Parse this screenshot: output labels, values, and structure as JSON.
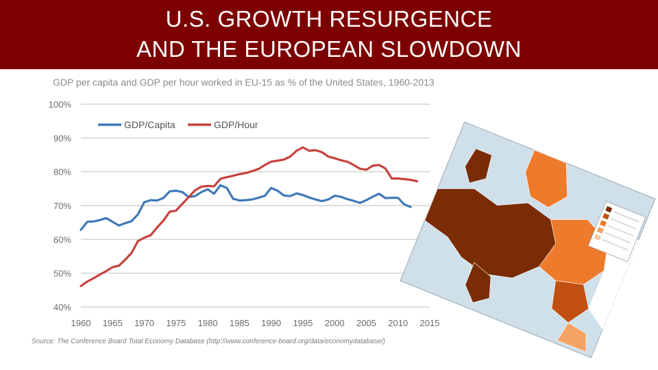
{
  "slide": {
    "title_line1": "U.S. GROWTH RESURGENCE",
    "title_line2": "AND THE EUROPEAN SLOWDOWN",
    "source": "Source: The Conference Board Total Economy Database (http://www.conference-board.org/data/economydatabase/)"
  },
  "colors": {
    "title_bar": "#7d0000",
    "gdp_capita": "#3f78b8",
    "gdp_hour": "#c8413c",
    "grid": "#c8c8c8",
    "axis_text": "#6a6a6a"
  },
  "map": {
    "legend_title": "Map legend (unreadable in source)",
    "colors": [
      "#7a2c05",
      "#c24f12",
      "#ee7a2c",
      "#f4a364",
      "#f8caa0",
      "#ffffff"
    ]
  },
  "chart_data": {
    "type": "line",
    "title": "GDP per capita and GDP per hour worked in EU-15 as % of the United States, 1960-2013",
    "xlabel": "",
    "ylabel": "",
    "xlim": [
      1960,
      2015
    ],
    "ylim": [
      40,
      100
    ],
    "x_ticks": [
      1960,
      1965,
      1970,
      1975,
      1980,
      1985,
      1990,
      1995,
      2000,
      2005,
      2010,
      2015
    ],
    "y_ticks": [
      40,
      50,
      60,
      70,
      80,
      90,
      100
    ],
    "y_tick_labels": [
      "40%",
      "50%",
      "60%",
      "70%",
      "80%",
      "90%",
      "100%"
    ],
    "legend_position": "top-left",
    "series": [
      {
        "name": "GDP/Capita",
        "color": "#3f78b8",
        "x": [
          1960,
          1961,
          1962,
          1963,
          1964,
          1965,
          1966,
          1967,
          1968,
          1969,
          1970,
          1971,
          1972,
          1973,
          1974,
          1975,
          1976,
          1977,
          1978,
          1979,
          1980,
          1981,
          1982,
          1983,
          1984,
          1985,
          1986,
          1987,
          1988,
          1989,
          1990,
          1991,
          1992,
          1993,
          1994,
          1995,
          1996,
          1997,
          1998,
          1999,
          2000,
          2001,
          2002,
          2003,
          2004,
          2005,
          2006,
          2007,
          2008,
          2009,
          2010,
          2011,
          2012,
          2013
        ],
        "values": [
          62.8,
          65.2,
          65.3,
          65.7,
          66.3,
          65.2,
          64.1,
          64.8,
          65.4,
          67.4,
          71.0,
          71.6,
          71.5,
          72.2,
          74.2,
          74.4,
          74.0,
          72.5,
          72.8,
          74.0,
          74.8,
          73.5,
          76.0,
          75.2,
          72.0,
          71.5,
          71.6,
          71.8,
          72.3,
          72.9,
          75.2,
          74.4,
          73.0,
          72.8,
          73.6,
          73.1,
          72.4,
          71.8,
          71.3,
          71.8,
          72.9,
          72.6,
          71.9,
          71.4,
          70.8,
          71.6,
          72.6,
          73.5,
          72.2,
          72.3,
          72.3,
          70.3,
          69.6,
          null
        ]
      },
      {
        "name": "GDP/Hour",
        "color": "#c8413c",
        "x": [
          1960,
          1961,
          1962,
          1963,
          1964,
          1965,
          1966,
          1967,
          1968,
          1969,
          1970,
          1971,
          1972,
          1973,
          1974,
          1975,
          1976,
          1977,
          1978,
          1979,
          1980,
          1981,
          1982,
          1983,
          1984,
          1985,
          1986,
          1987,
          1988,
          1989,
          1990,
          1991,
          1992,
          1993,
          1994,
          1995,
          1996,
          1997,
          1998,
          1999,
          2000,
          2001,
          2002,
          2003,
          2004,
          2005,
          2006,
          2007,
          2008,
          2009,
          2010,
          2011,
          2012,
          2013
        ],
        "values": [
          46.2,
          47.5,
          48.5,
          49.6,
          50.6,
          51.8,
          52.2,
          54.0,
          56.0,
          59.5,
          60.5,
          61.2,
          63.5,
          65.5,
          68.2,
          68.5,
          70.5,
          72.5,
          74.5,
          75.6,
          75.8,
          75.7,
          77.9,
          78.4,
          78.8,
          79.3,
          79.6,
          80.2,
          80.8,
          82.0,
          83.0,
          83.3,
          83.6,
          84.5,
          86.2,
          87.2,
          86.2,
          86.4,
          85.8,
          84.5,
          84.0,
          83.4,
          83.0,
          82.0,
          80.9,
          80.6,
          81.8,
          82.0,
          81.0,
          78.0,
          78.0,
          77.8,
          77.6,
          77.2
        ]
      }
    ]
  }
}
